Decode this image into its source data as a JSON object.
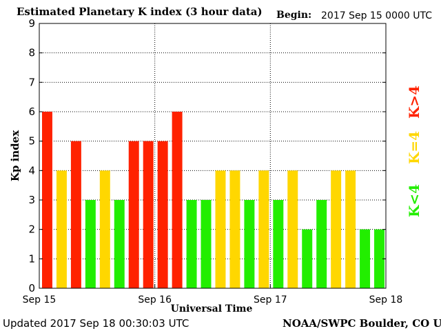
{
  "header": {
    "title": "Estimated Planetary K index (3 hour data)",
    "begin_label": "Begin:",
    "begin_value": "2017 Sep 15 0000 UTC"
  },
  "footer": {
    "updated": "Updated 2017 Sep 18 00:30:03 UTC",
    "source": "NOAA/SWPC Boulder, CO USA"
  },
  "legend": {
    "above": "K>4",
    "equal": "K=4",
    "below": "K<4"
  },
  "colors": {
    "above": "#ff2200",
    "equal": "#ffd700",
    "below": "#22ee00"
  },
  "chart_data": {
    "type": "bar",
    "title": "Estimated Planetary K index (3 hour data)",
    "xlabel": "Universal Time",
    "ylabel": "Kp index",
    "ylim": [
      0,
      9
    ],
    "yticks": [
      0,
      1,
      2,
      3,
      4,
      5,
      6,
      7,
      8,
      9
    ],
    "xticks": [
      "Sep 15",
      "Sep 16",
      "Sep 17",
      "Sep 18"
    ],
    "grid": true,
    "values": [
      6,
      4,
      5,
      3,
      4,
      3,
      5,
      5,
      5,
      6,
      3,
      3,
      4,
      4,
      3,
      4,
      3,
      4,
      2,
      3,
      4,
      4,
      2,
      2
    ]
  }
}
